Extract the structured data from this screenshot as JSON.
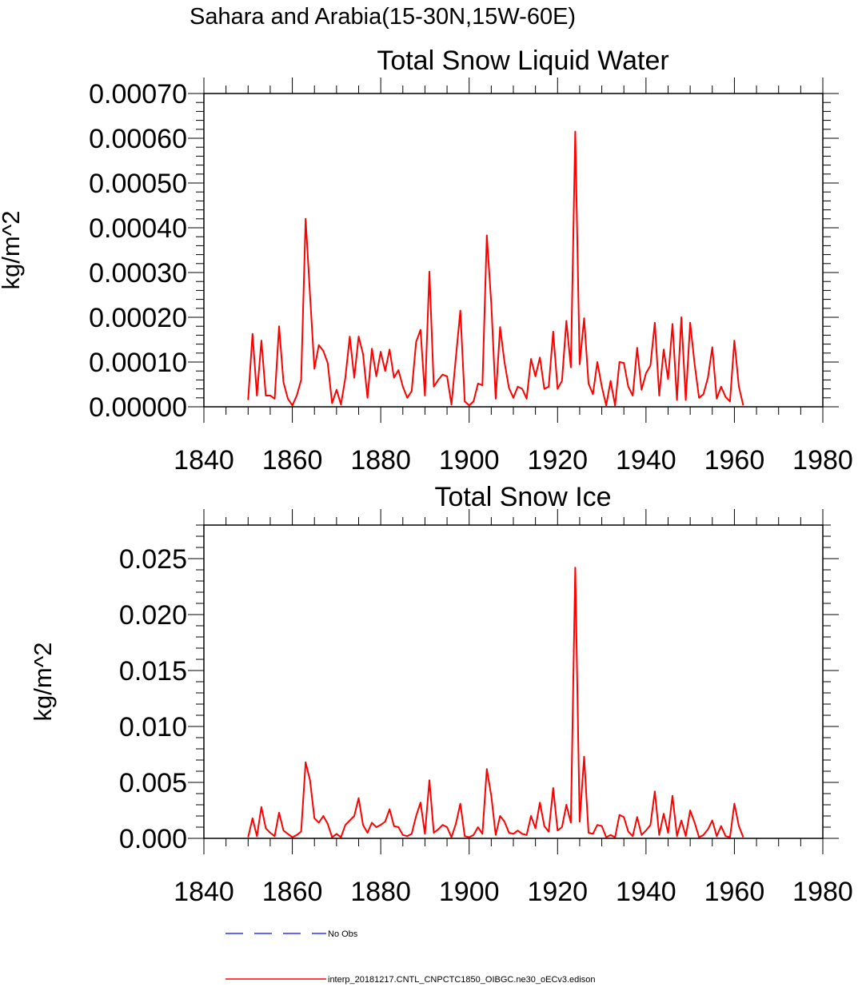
{
  "figure": {
    "region_title": "Sahara and Arabia(15-30N,15W-60E)"
  },
  "legend": {
    "items": [
      {
        "label": "No Obs",
        "color": "#3333ff",
        "style": "dashed"
      },
      {
        "label": "interp_20181217.CNTL_CNPCTC1850_OIBGC.ne30_oECv3.edison",
        "color": "#ff0000",
        "style": "solid"
      }
    ]
  },
  "chart_data": [
    {
      "type": "line",
      "title": "Total Snow Liquid Water",
      "xlabel": "",
      "ylabel": "kg/m^2",
      "xlim": [
        1840,
        1980
      ],
      "ylim": [
        0,
        0.0007
      ],
      "xticks": [
        1840,
        1860,
        1880,
        1900,
        1920,
        1940,
        1960,
        1980
      ],
      "xtick_labels": [
        "1840",
        "1860",
        "1880",
        "1900",
        "1920",
        "1940",
        "1960",
        "1980"
      ],
      "yticks": [
        0,
        0.0001,
        0.0002,
        0.0003,
        0.0004,
        0.0005,
        0.0006,
        0.0007
      ],
      "ytick_labels": [
        "0.00000",
        "0.00010",
        "0.00020",
        "0.00030",
        "0.00040",
        "0.00050",
        "0.00060",
        "0.00070"
      ],
      "grid": false,
      "series": [
        {
          "name": "interp_20181217.CNTL_CNPCTC1850_OIBGC.ne30_oECv3.edison",
          "color": "#ff0000",
          "x": [
            1850,
            1851,
            1852,
            1853,
            1854,
            1855,
            1856,
            1857,
            1858,
            1859,
            1860,
            1861,
            1862,
            1863,
            1864,
            1865,
            1866,
            1867,
            1868,
            1869,
            1870,
            1871,
            1872,
            1873,
            1874,
            1875,
            1876,
            1877,
            1878,
            1879,
            1880,
            1881,
            1882,
            1883,
            1884,
            1885,
            1886,
            1887,
            1888,
            1889,
            1890,
            1891,
            1892,
            1893,
            1894,
            1895,
            1896,
            1897,
            1898,
            1899,
            1900,
            1901,
            1902,
            1903,
            1904,
            1905,
            1906,
            1907,
            1908,
            1909,
            1910,
            1911,
            1912,
            1913,
            1914,
            1915,
            1916,
            1917,
            1918,
            1919,
            1920,
            1921,
            1922,
            1923,
            1924,
            1925,
            1926,
            1927,
            1928,
            1929,
            1930,
            1931,
            1932,
            1933,
            1934,
            1935,
            1936,
            1937,
            1938,
            1939,
            1940,
            1941,
            1942,
            1943,
            1944,
            1945,
            1946,
            1947,
            1948,
            1949,
            1950,
            1951,
            1952,
            1953,
            1954,
            1955,
            1956,
            1957,
            1958,
            1959,
            1960,
            1961,
            1962
          ],
          "values": [
            1.5e-05,
            0.000163,
            2.5e-05,
            0.000148,
            2.5e-05,
            2.5e-05,
            1.8e-05,
            0.00018,
            5.5e-05,
            1.8e-05,
            3e-06,
            2.5e-05,
            6e-05,
            0.00042,
            0.00025,
            8.5e-05,
            0.000138,
            0.000125,
            9.8e-05,
            8e-06,
            3.8e-05,
            5e-06,
            6.5e-05,
            0.000157,
            6.5e-05,
            0.000157,
            0.000118,
            2e-05,
            0.00013,
            6.8e-05,
            0.000123,
            8e-05,
            0.000128,
            6.5e-05,
            8.2e-05,
            4.5e-05,
            2e-05,
            3.5e-05,
            0.000145,
            0.000172,
            2.5e-05,
            0.000302,
            4.5e-05,
            6e-05,
            7.2e-05,
            6.8e-05,
            5e-06,
            0.00011,
            0.000215,
            1.2e-05,
            3e-06,
            1.2e-05,
            5.2e-05,
            4.8e-05,
            0.000383,
            0.00023,
            1.8e-05,
            0.000178,
            0.0001,
            4.2e-05,
            2e-05,
            4.5e-05,
            4e-05,
            1.8e-05,
            0.000107,
            6.8e-05,
            0.00011,
            4e-05,
            4.5e-05,
            0.000168,
            4e-05,
            5.8e-05,
            0.000192,
            8.8e-05,
            0.000615,
            9.5e-05,
            0.000198,
            5.2e-05,
            2.8e-05,
            0.0001,
            4.5e-05,
            3e-06,
            5.8e-05,
            3e-06,
            0.0001,
            9.8e-05,
            4.5e-05,
            2.5e-05,
            0.000132,
            3.8e-05,
            7.5e-05,
            9.2e-05,
            0.000188,
            2.5e-05,
            0.000128,
            6.2e-05,
            0.000185,
            1.5e-05,
            0.0002,
            1.5e-05,
            0.000188,
            9.5e-05,
            2e-05,
            2.8e-05,
            6.5e-05,
            0.000133,
            1.8e-05,
            4.5e-05,
            2.2e-05,
            1.2e-05,
            0.000148,
            4.5e-05,
            3e-06
          ]
        }
      ]
    },
    {
      "type": "line",
      "title": "Total Snow Ice",
      "xlabel": "",
      "ylabel": "kg/m^2",
      "xlim": [
        1840,
        1980
      ],
      "ylim": [
        0,
        0.028
      ],
      "xticks": [
        1840,
        1860,
        1880,
        1900,
        1920,
        1940,
        1960,
        1980
      ],
      "xtick_labels": [
        "1840",
        "1860",
        "1880",
        "1900",
        "1920",
        "1940",
        "1960",
        "1980"
      ],
      "yticks": [
        0,
        0.005,
        0.01,
        0.015,
        0.02,
        0.025
      ],
      "ytick_labels": [
        "0.000",
        "0.005",
        "0.010",
        "0.015",
        "0.020",
        "0.025"
      ],
      "grid": false,
      "series": [
        {
          "name": "interp_20181217.CNTL_CNPCTC1850_OIBGC.ne30_oECv3.edison",
          "color": "#ff0000",
          "x": [
            1850,
            1851,
            1852,
            1853,
            1854,
            1855,
            1856,
            1857,
            1858,
            1859,
            1860,
            1861,
            1862,
            1863,
            1864,
            1865,
            1866,
            1867,
            1868,
            1869,
            1870,
            1871,
            1872,
            1873,
            1874,
            1875,
            1876,
            1877,
            1878,
            1879,
            1880,
            1881,
            1882,
            1883,
            1884,
            1885,
            1886,
            1887,
            1888,
            1889,
            1890,
            1891,
            1892,
            1893,
            1894,
            1895,
            1896,
            1897,
            1898,
            1899,
            1900,
            1901,
            1902,
            1903,
            1904,
            1905,
            1906,
            1907,
            1908,
            1909,
            1910,
            1911,
            1912,
            1913,
            1914,
            1915,
            1916,
            1917,
            1918,
            1919,
            1920,
            1921,
            1922,
            1923,
            1924,
            1925,
            1926,
            1927,
            1928,
            1929,
            1930,
            1931,
            1932,
            1933,
            1934,
            1935,
            1936,
            1937,
            1938,
            1939,
            1940,
            1941,
            1942,
            1943,
            1944,
            1945,
            1946,
            1947,
            1948,
            1949,
            1950,
            1951,
            1952,
            1953,
            1954,
            1955,
            1956,
            1957,
            1958,
            1959,
            1960,
            1961,
            1962
          ],
          "values": [
            0.0001,
            0.0018,
            0.0002,
            0.0028,
            0.0009,
            0.0005,
            0.0002,
            0.0023,
            0.0007,
            0.0004,
            0.0001,
            0.0003,
            0.0006,
            0.0068,
            0.0052,
            0.0018,
            0.0014,
            0.002,
            0.0013,
            0.0001,
            0.0004,
            0.0001,
            0.0012,
            0.0016,
            0.002,
            0.0036,
            0.0012,
            0.0005,
            0.0014,
            0.001,
            0.0012,
            0.0015,
            0.0026,
            0.0011,
            0.001,
            0.0003,
            0.0002,
            0.0004,
            0.002,
            0.0032,
            0.0004,
            0.0052,
            0.0005,
            0.0008,
            0.0012,
            0.001,
            0.0001,
            0.0013,
            0.0031,
            0.0002,
            0.0001,
            0.0003,
            0.001,
            0.0004,
            0.0062,
            0.0038,
            0.0003,
            0.002,
            0.0015,
            0.0005,
            0.0004,
            0.0007,
            0.0004,
            0.0003,
            0.002,
            0.0009,
            0.0032,
            0.0011,
            0.0006,
            0.0045,
            0.0007,
            0.001,
            0.003,
            0.0014,
            0.0242,
            0.0015,
            0.0073,
            0.0005,
            0.0004,
            0.0012,
            0.0011,
            0.0001,
            0.0003,
            0.0001,
            0.0021,
            0.0019,
            0.0006,
            0.0002,
            0.0019,
            0.0003,
            0.0007,
            0.0012,
            0.0042,
            0.0003,
            0.0022,
            0.0005,
            0.0038,
            0.0002,
            0.0016,
            0.0002,
            0.0025,
            0.0014,
            0.0001,
            0.0003,
            0.0008,
            0.0016,
            0.0002,
            0.0011,
            0.0002,
            0.0001,
            0.0031,
            0.0011,
            0.0001
          ]
        }
      ]
    }
  ]
}
